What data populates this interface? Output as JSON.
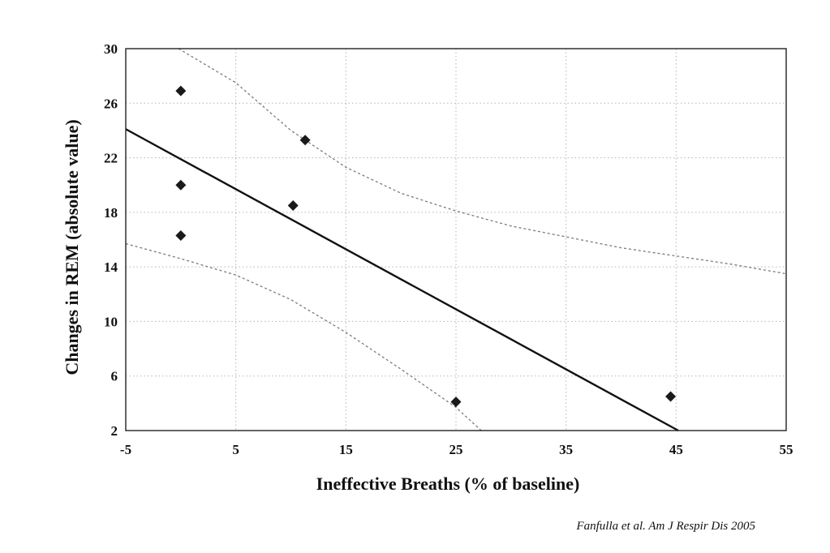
{
  "chart_data": {
    "type": "scatter",
    "xlabel": "Ineffective Breaths (% of baseline)",
    "ylabel": "Changes in REM  (absolute value)",
    "xlim": [
      -5,
      55
    ],
    "ylim": [
      2,
      30
    ],
    "x_ticks": [
      -5,
      5,
      15,
      25,
      35,
      45,
      55
    ],
    "y_ticks": [
      2,
      6,
      10,
      14,
      18,
      22,
      26,
      30
    ],
    "grid": true,
    "points": [
      {
        "x": 0,
        "y": 26.9
      },
      {
        "x": 0,
        "y": 20.0
      },
      {
        "x": 0,
        "y": 16.3
      },
      {
        "x": 10.2,
        "y": 18.5
      },
      {
        "x": 11.3,
        "y": 23.3
      },
      {
        "x": 25,
        "y": 4.1
      },
      {
        "x": 44.5,
        "y": 4.5
      }
    ],
    "regression_line": [
      {
        "x": -5,
        "y": 24.1
      },
      {
        "x": 45.2,
        "y": 2
      }
    ],
    "upper_confidence_band": [
      {
        "x": -0.2,
        "y": 30
      },
      {
        "x": 5,
        "y": 27.5
      },
      {
        "x": 10,
        "y": 24.0
      },
      {
        "x": 15,
        "y": 21.3
      },
      {
        "x": 20,
        "y": 19.4
      },
      {
        "x": 25,
        "y": 18.1
      },
      {
        "x": 30,
        "y": 17.0
      },
      {
        "x": 35,
        "y": 16.2
      },
      {
        "x": 40,
        "y": 15.4
      },
      {
        "x": 45,
        "y": 14.8
      },
      {
        "x": 50,
        "y": 14.2
      },
      {
        "x": 55,
        "y": 13.5
      }
    ],
    "lower_confidence_band": [
      {
        "x": -5,
        "y": 15.7
      },
      {
        "x": 0,
        "y": 14.6
      },
      {
        "x": 5,
        "y": 13.4
      },
      {
        "x": 10,
        "y": 11.6
      },
      {
        "x": 15,
        "y": 9.2
      },
      {
        "x": 20,
        "y": 6.5
      },
      {
        "x": 25,
        "y": 3.7
      },
      {
        "x": 27.3,
        "y": 2
      }
    ]
  },
  "citation": "Fanfulla et al. Am J Respir Dis 2005"
}
